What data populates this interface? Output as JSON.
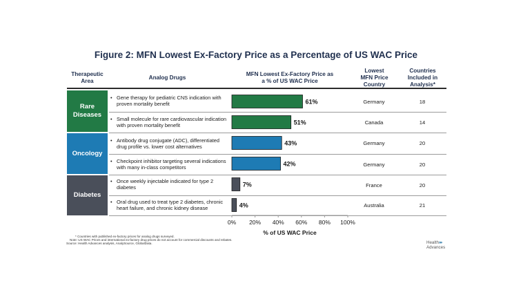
{
  "title": "Figure 2: MFN Lowest Ex-Factory Price as a Percentage of US WAC Price",
  "headers": {
    "therapeutic_area_1": "Therapeutic",
    "therapeutic_area_2": "Area",
    "analog_drugs": "Analog Drugs",
    "mfn_1": "MFN Lowest Ex-Factory Price as",
    "mfn_2": "a % of US WAC Price",
    "lowest_1": "Lowest",
    "lowest_2": "MFN Price",
    "lowest_3": "Country",
    "countries_1": "Countries",
    "countries_2": "Included in",
    "countries_3": "Analysis*"
  },
  "categories": [
    {
      "line1": "Rare",
      "line2": "Diseases",
      "color": "#227a45"
    },
    {
      "line1": "Oncology",
      "line2": "",
      "color": "#1e7bb4"
    },
    {
      "line1": "Diabetes",
      "line2": "",
      "color": "#4a4f5a"
    }
  ],
  "rows": [
    {
      "bullet": "•",
      "drug": "Gene therapy for pediatric CNS indication with proven mortality benefit",
      "country": "Germany",
      "count": "18"
    },
    {
      "bullet": "•",
      "drug": "Small molecule for rare cardiovascular indication with proven mortality benefit",
      "country": "Canada",
      "count": "14"
    },
    {
      "bullet": "•",
      "drug": "Antibody drug conjugate (ADC), differentiated drug profile vs. lower cost alternatives",
      "country": "Germany",
      "count": "20"
    },
    {
      "bullet": "•",
      "drug": "Checkpoint inhibitor targeting several indications with many in-class competitors",
      "country": "Germany",
      "count": "20"
    },
    {
      "bullet": "•",
      "drug": "Once weekly injectable indicated for type 2 diabetes",
      "country": "France",
      "count": "20"
    },
    {
      "bullet": "•",
      "drug": "Oral drug used to treat type 2 diabetes, chronic heart failure, and chronic kidney disease",
      "country": "Australia",
      "count": "21"
    }
  ],
  "chart_data": {
    "type": "bar",
    "orientation": "horizontal",
    "categories": [
      "Gene therapy for pediatric CNS indication with proven mortality benefit",
      "Small molecule for rare cardiovascular indication with proven mortality benefit",
      "Antibody drug conjugate (ADC), differentiated drug profile vs. lower cost alternatives",
      "Checkpoint inhibitor targeting several indications with many in-class competitors",
      "Once weekly injectable indicated for type 2 diabetes",
      "Oral drug used to treat type 2 diabetes, chronic heart failure, and chronic kidney disease"
    ],
    "values": [
      61,
      51,
      43,
      42,
      7,
      4
    ],
    "labels": [
      "61%",
      "51%",
      "43%",
      "42%",
      "7%",
      "4%"
    ],
    "bar_colors": [
      "#227a45",
      "#227a45",
      "#1e7bb4",
      "#1e7bb4",
      "#4a4f5a",
      "#4a4f5a"
    ],
    "xlim": [
      0,
      100
    ],
    "ticks": [
      "0%",
      "20%",
      "40%",
      "60%",
      "80%",
      "100%"
    ],
    "tick_values": [
      0,
      20,
      40,
      60,
      80,
      100
    ],
    "xlabel": "% of US WAC Price",
    "title": "MFN Lowest Ex-Factory Price as a % of US WAC Price"
  },
  "footnotes": [
    "*  Countries with published ex-factory prices for analog drugs surveyed.",
    "Note:  US WAC Prices and international ex-factory drug prices do not account for commercial discounts and rebates.",
    "Source:  Health Advances analysis, AnalySource, GlobalData."
  ],
  "logo": {
    "line1": "Health",
    "chevrons": "››››",
    "line2": "Advances"
  }
}
